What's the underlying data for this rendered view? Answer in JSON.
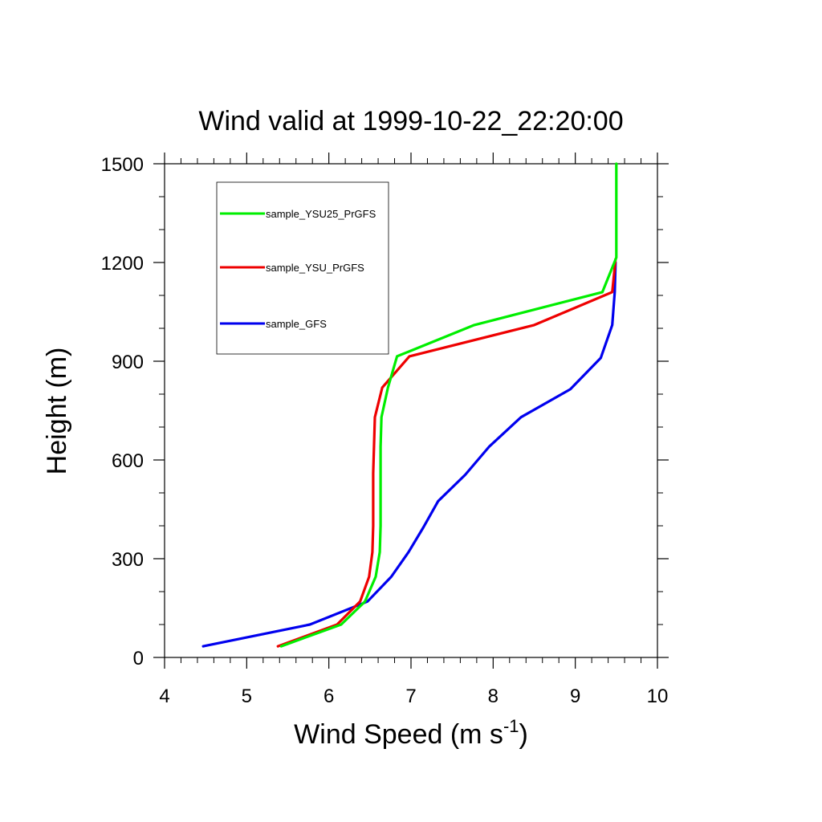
{
  "chart_data": {
    "type": "line",
    "title": "Wind valid at 1999-10-22_22:20:00",
    "xlabel": "Wind Speed (m s",
    "xlabel_sup": "-1",
    "xlabel_close": ")",
    "ylabel": "Height (m)",
    "xlim": [
      4,
      10
    ],
    "ylim": [
      0,
      1500
    ],
    "x_ticks": [
      4,
      5,
      6,
      7,
      8,
      9,
      10
    ],
    "y_ticks": [
      0,
      300,
      600,
      900,
      1200,
      1500
    ],
    "x_tick_labels": [
      "4",
      "5",
      "6",
      "7",
      "8",
      "9",
      "10"
    ],
    "y_tick_labels": [
      "0",
      "300",
      "600",
      "900",
      "1200",
      "1500"
    ],
    "legend_position": "top-left",
    "series": [
      {
        "name": "sample_YSU25_PrGFS",
        "color": "#00ee00",
        "points": [
          [
            5.42,
            34
          ],
          [
            6.15,
            100
          ],
          [
            6.44,
            170
          ],
          [
            6.57,
            245
          ],
          [
            6.62,
            320
          ],
          [
            6.63,
            400
          ],
          [
            6.63,
            480
          ],
          [
            6.63,
            560
          ],
          [
            6.63,
            640
          ],
          [
            6.64,
            730
          ],
          [
            6.72,
            820
          ],
          [
            6.83,
            915
          ],
          [
            7.77,
            1010
          ],
          [
            9.33,
            1110
          ],
          [
            9.5,
            1215
          ],
          [
            9.5,
            1300
          ],
          [
            9.5,
            1400
          ],
          [
            9.5,
            1500
          ]
        ]
      },
      {
        "name": "sample_YSU_PrGFS",
        "color": "#ee0000",
        "points": [
          [
            5.38,
            34
          ],
          [
            6.1,
            100
          ],
          [
            6.38,
            170
          ],
          [
            6.49,
            245
          ],
          [
            6.53,
            320
          ],
          [
            6.54,
            400
          ],
          [
            6.54,
            480
          ],
          [
            6.54,
            560
          ],
          [
            6.55,
            640
          ],
          [
            6.56,
            730
          ],
          [
            6.65,
            820
          ],
          [
            6.98,
            915
          ],
          [
            8.5,
            1010
          ],
          [
            9.45,
            1110
          ],
          [
            9.49,
            1210
          ]
        ]
      },
      {
        "name": "sample_GFS",
        "color": "#0000ee",
        "points": [
          [
            4.47,
            34
          ],
          [
            5.77,
            100
          ],
          [
            6.47,
            170
          ],
          [
            6.76,
            245
          ],
          [
            6.97,
            320
          ],
          [
            7.15,
            395
          ],
          [
            7.33,
            475
          ],
          [
            7.66,
            555
          ],
          [
            7.95,
            640
          ],
          [
            8.34,
            730
          ],
          [
            8.94,
            815
          ],
          [
            9.31,
            910
          ],
          [
            9.45,
            1010
          ],
          [
            9.48,
            1110
          ],
          [
            9.49,
            1200
          ]
        ]
      }
    ]
  }
}
